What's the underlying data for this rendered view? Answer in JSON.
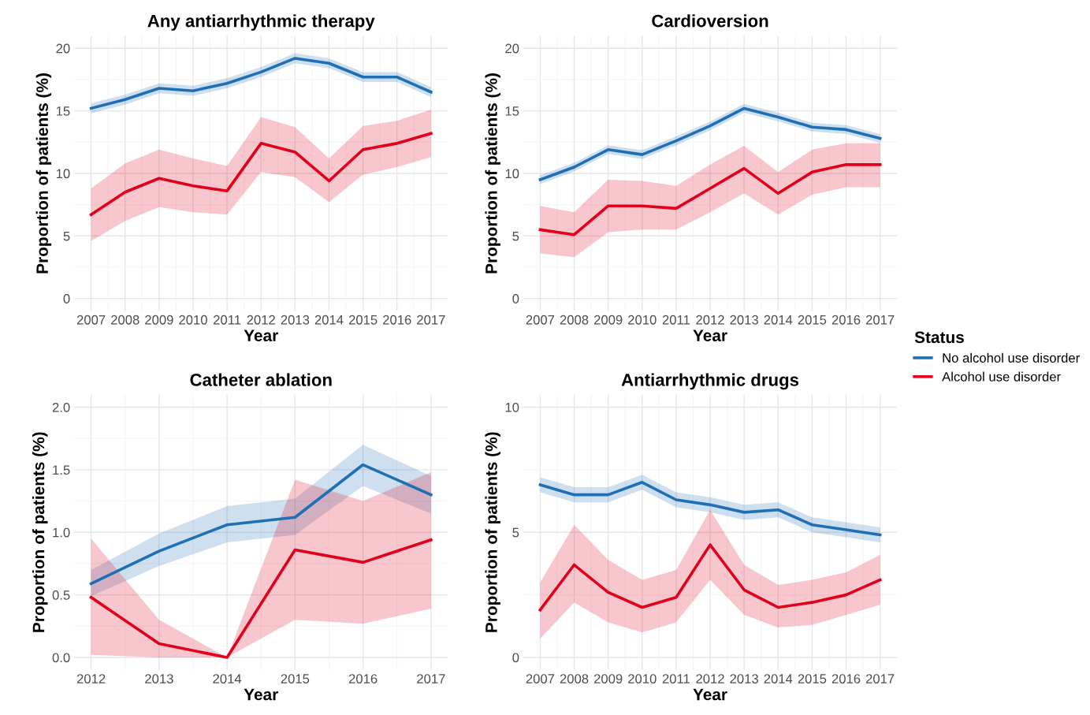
{
  "chart_data": [
    {
      "type": "line",
      "title": "Any antiarrhythmic therapy",
      "xlabel": "Year",
      "ylabel": "Proportion of patients (%)",
      "legend": "right",
      "legend_title": "Status",
      "x": [
        2007,
        2008,
        2009,
        2010,
        2011,
        2012,
        2013,
        2014,
        2015,
        2016,
        2017
      ],
      "xlim": [
        2006.5,
        2017.5
      ],
      "xticks": [
        2007,
        2008,
        2009,
        2010,
        2011,
        2012,
        2013,
        2014,
        2015,
        2016,
        2017
      ],
      "ylim": [
        -1,
        21
      ],
      "yticks": [
        0,
        5,
        10,
        15,
        20
      ],
      "grid": true,
      "series": [
        {
          "name": "No alcohol use disorder",
          "color": "#1f6fb4",
          "values": [
            15.2,
            15.9,
            16.8,
            16.6,
            17.2,
            18.1,
            19.2,
            18.8,
            17.7,
            17.7,
            16.5
          ],
          "lower": [
            14.8,
            15.5,
            16.4,
            16.2,
            16.8,
            17.7,
            18.8,
            18.4,
            17.3,
            17.3,
            16.1
          ],
          "upper": [
            15.6,
            16.3,
            17.2,
            17.0,
            17.6,
            18.5,
            19.6,
            19.2,
            18.1,
            18.1,
            16.9
          ]
        },
        {
          "name": "Alcohol use disorder",
          "color": "#e0001b",
          "values": [
            6.7,
            8.5,
            9.6,
            9.0,
            8.6,
            12.4,
            11.7,
            9.4,
            11.9,
            12.4,
            13.2
          ],
          "lower": [
            4.6,
            6.2,
            7.3,
            6.9,
            6.7,
            10.1,
            9.7,
            7.7,
            9.9,
            10.5,
            11.3
          ],
          "upper": [
            8.8,
            10.8,
            11.9,
            11.2,
            10.6,
            14.5,
            13.7,
            11.2,
            13.8,
            14.2,
            15.1
          ]
        }
      ]
    },
    {
      "type": "line",
      "title": "Cardioversion",
      "xlabel": "Year",
      "ylabel": "Proportion of patients (%)",
      "x": [
        2007,
        2008,
        2009,
        2010,
        2011,
        2012,
        2013,
        2014,
        2015,
        2016,
        2017
      ],
      "xlim": [
        2006.5,
        2017.5
      ],
      "xticks": [
        2007,
        2008,
        2009,
        2010,
        2011,
        2012,
        2013,
        2014,
        2015,
        2016,
        2017
      ],
      "ylim": [
        -1,
        21
      ],
      "yticks": [
        0,
        5,
        10,
        15,
        20
      ],
      "grid": true,
      "series": [
        {
          "color": "#1f6fb4",
          "values": [
            9.5,
            10.5,
            11.9,
            11.5,
            12.6,
            13.8,
            15.2,
            14.5,
            13.7,
            13.5,
            12.8
          ],
          "lower": [
            9.15,
            10.15,
            11.55,
            11.15,
            12.25,
            13.45,
            14.85,
            14.15,
            13.35,
            13.15,
            12.45
          ],
          "upper": [
            9.85,
            10.85,
            12.25,
            11.85,
            12.95,
            14.15,
            15.55,
            14.85,
            14.05,
            13.85,
            13.15
          ]
        },
        {
          "color": "#e0001b",
          "values": [
            5.5,
            5.1,
            7.4,
            7.4,
            7.2,
            8.8,
            10.4,
            8.4,
            10.1,
            10.7,
            10.7
          ],
          "lower": [
            3.6,
            3.3,
            5.3,
            5.5,
            5.5,
            6.9,
            8.4,
            6.7,
            8.3,
            8.9,
            8.9
          ],
          "upper": [
            7.4,
            6.9,
            9.5,
            9.4,
            9.0,
            10.7,
            12.2,
            10.1,
            11.9,
            12.4,
            12.4
          ]
        }
      ]
    },
    {
      "type": "line",
      "title": "Catheter ablation",
      "xlabel": "Year",
      "ylabel": "Proportion of patients (%)",
      "x": [
        2012,
        2013,
        2014,
        2015,
        2016,
        2017
      ],
      "xlim": [
        2011.75,
        2017.25
      ],
      "xticks": [
        2012,
        2013,
        2014,
        2015,
        2016,
        2017
      ],
      "ylim": [
        -0.1,
        2.1
      ],
      "yticks": [
        {
          "value": 0,
          "label": "0.0"
        },
        {
          "value": 0.5,
          "label": "0.5"
        },
        {
          "value": 1,
          "label": "1.0"
        },
        {
          "value": 1.5,
          "label": "1.5"
        },
        {
          "value": 2,
          "label": "2.0"
        }
      ],
      "grid": true,
      "series": [
        {
          "color": "#1f6fb4",
          "values": [
            0.59,
            0.85,
            1.06,
            1.12,
            1.54,
            1.3
          ],
          "lower": [
            0.49,
            0.73,
            0.92,
            0.98,
            1.37,
            1.15
          ],
          "upper": [
            0.7,
            0.99,
            1.21,
            1.27,
            1.7,
            1.45
          ]
        },
        {
          "color": "#e0001b",
          "values": [
            0.48,
            0.11,
            0,
            0.86,
            0.76,
            0.94
          ],
          "lower": [
            0.02,
            0,
            0,
            0.3,
            0.27,
            0.39
          ],
          "upper": [
            0.95,
            0.3,
            0,
            1.42,
            1.25,
            1.48
          ]
        }
      ]
    },
    {
      "type": "line",
      "title": "Antiarrhythmic drugs",
      "xlabel": "Year",
      "ylabel": "Proportion of patients (%)",
      "x": [
        2007,
        2008,
        2009,
        2010,
        2011,
        2012,
        2013,
        2014,
        2015,
        2016,
        2017
      ],
      "xlim": [
        2006.5,
        2017.5
      ],
      "xticks": [
        2007,
        2008,
        2009,
        2010,
        2011,
        2012,
        2013,
        2014,
        2015,
        2016,
        2017
      ],
      "ylim": [
        -0.5,
        10.5
      ],
      "yticks": [
        0,
        5,
        10
      ],
      "grid": true,
      "series": [
        {
          "color": "#1f6fb4",
          "values": [
            6.9,
            6.5,
            6.5,
            7.0,
            6.3,
            6.1,
            5.8,
            5.9,
            5.3,
            5.1,
            4.9
          ],
          "lower": [
            6.6,
            6.2,
            6.2,
            6.7,
            6.0,
            5.8,
            5.5,
            5.6,
            5.0,
            4.8,
            4.6
          ],
          "upper": [
            7.2,
            6.8,
            6.8,
            7.3,
            6.6,
            6.4,
            6.1,
            6.2,
            5.6,
            5.4,
            5.2
          ]
        },
        {
          "color": "#e0001b",
          "values": [
            1.9,
            3.7,
            2.6,
            2.0,
            2.4,
            4.5,
            2.7,
            2.0,
            2.2,
            2.5,
            3.1
          ],
          "lower": [
            0.75,
            2.2,
            1.4,
            1.0,
            1.4,
            3.1,
            1.7,
            1.2,
            1.3,
            1.7,
            2.1
          ],
          "upper": [
            3.0,
            5.3,
            3.9,
            3.1,
            3.5,
            5.9,
            3.7,
            2.9,
            3.1,
            3.4,
            4.1
          ]
        }
      ]
    }
  ]
}
